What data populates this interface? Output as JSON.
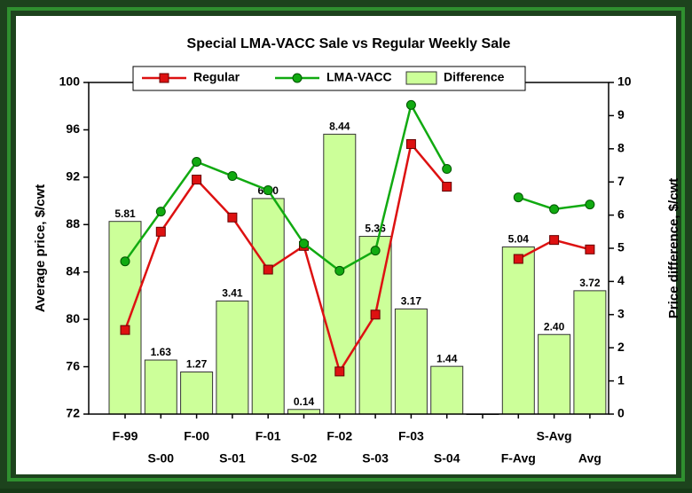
{
  "chart_data": {
    "type": "combo",
    "title": "Special LMA-VACC Sale vs Regular Weekly Sale",
    "ylabel": "Average price, $/cwt",
    "y2label": "Price difference, $/cwt",
    "categories": [
      "F-99",
      "S-00",
      "F-00",
      "S-01",
      "F-01",
      "S-02",
      "F-02",
      "S-03",
      "F-03",
      "S-04",
      null,
      "F-Avg",
      "S-Avg",
      "Avg"
    ],
    "series": [
      {
        "name": "Regular",
        "type": "line",
        "marker": "square",
        "color": "#dd1111",
        "values": [
          79.1,
          87.4,
          91.8,
          88.6,
          84.2,
          86.2,
          75.6,
          80.4,
          94.8,
          91.2,
          null,
          85.1,
          86.7,
          85.9
        ]
      },
      {
        "name": "LMA-VACC",
        "type": "line",
        "marker": "circle",
        "color": "#11aa11",
        "values": [
          84.9,
          89.1,
          93.3,
          92.1,
          90.9,
          86.4,
          84.1,
          85.8,
          98.1,
          92.7,
          null,
          90.3,
          89.3,
          89.7
        ]
      },
      {
        "name": "Difference",
        "type": "bar",
        "axis": "y2",
        "color": "#ccff99",
        "values": [
          5.81,
          1.63,
          1.27,
          3.41,
          6.5,
          0.14,
          8.44,
          5.36,
          3.17,
          1.44,
          0,
          5.04,
          2.4,
          3.72
        ],
        "value_labels": [
          "5.81",
          "1.63",
          "1.27",
          "3.41",
          "6.50",
          "0.14",
          "8.44",
          "5.36",
          "3.17",
          "1.44",
          null,
          "5.04",
          "2.40",
          "3.72"
        ]
      }
    ],
    "ylim": [
      72,
      100
    ],
    "yticks": [
      72,
      76,
      80,
      84,
      88,
      92,
      96,
      100
    ],
    "y2lim": [
      0,
      10
    ],
    "y2ticks": [
      0,
      1,
      2,
      3,
      4,
      5,
      6,
      7,
      8,
      9,
      10
    ],
    "legend": "top"
  }
}
